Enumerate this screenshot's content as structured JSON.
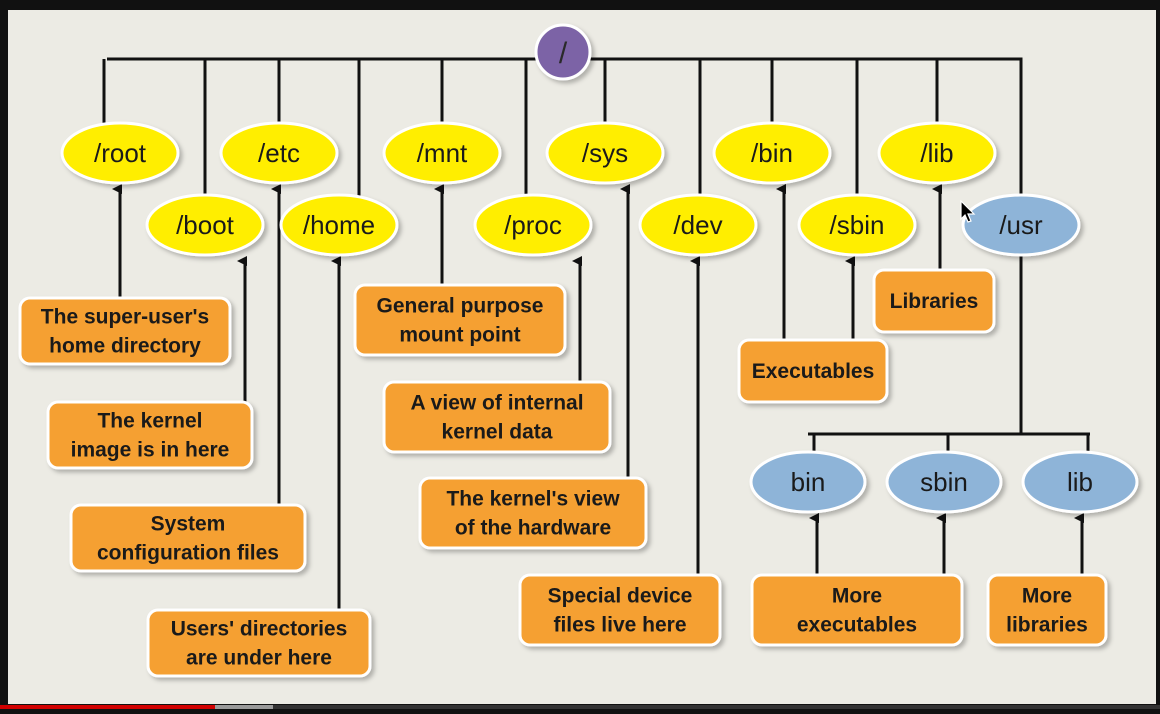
{
  "root": {
    "label": "/"
  },
  "directories": [
    {
      "id": "root",
      "label": "/root",
      "description": [
        "The super-user's",
        "home directory"
      ]
    },
    {
      "id": "boot",
      "label": "/boot",
      "description": [
        "The kernel",
        "image is in here"
      ]
    },
    {
      "id": "etc",
      "label": "/etc",
      "description": [
        "System",
        "configuration files"
      ]
    },
    {
      "id": "home",
      "label": "/home",
      "description": [
        "Users' directories",
        "are under here"
      ]
    },
    {
      "id": "mnt",
      "label": "/mnt",
      "description": [
        "General purpose",
        "mount point"
      ]
    },
    {
      "id": "proc",
      "label": "/proc",
      "description": [
        "A view of internal",
        "kernel data"
      ]
    },
    {
      "id": "sys",
      "label": "/sys",
      "description": [
        "The kernel's view",
        "of the hardware"
      ]
    },
    {
      "id": "dev",
      "label": "/dev",
      "description": [
        "Special device",
        "files live here"
      ]
    },
    {
      "id": "bin",
      "label": "/bin",
      "description": [
        "Executables"
      ]
    },
    {
      "id": "sbin",
      "label": "/sbin",
      "description": [
        "Executables"
      ]
    },
    {
      "id": "lib",
      "label": "/lib",
      "description": [
        "Libraries"
      ]
    },
    {
      "id": "usr",
      "label": "/usr",
      "description": []
    }
  ],
  "usr_children": [
    {
      "id": "usr-bin",
      "label": "bin",
      "description": [
        "More",
        "executables"
      ]
    },
    {
      "id": "usr-sbin",
      "label": "sbin",
      "description": [
        "More",
        "executables"
      ]
    },
    {
      "id": "usr-lib",
      "label": "lib",
      "description": [
        "More",
        "libraries"
      ]
    }
  ],
  "colors": {
    "background": "#ecebe4",
    "root_node": "#7b64a6",
    "top_level_node": "#ffee00",
    "usr_node": "#8eb4d8",
    "description_box": "#f5a030",
    "connector": "#111111"
  },
  "video": {
    "progress": 0.185,
    "buffered": 0.235
  }
}
